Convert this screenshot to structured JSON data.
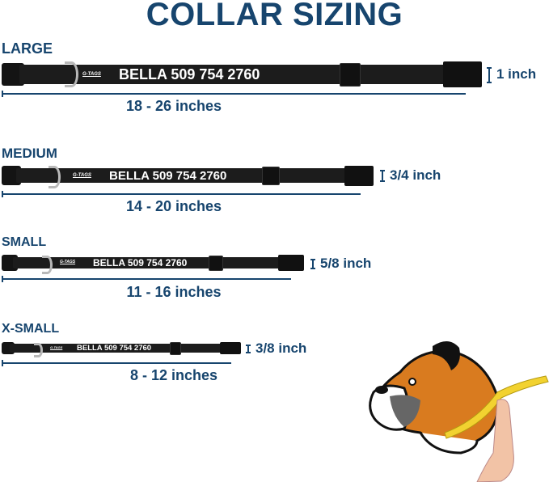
{
  "title": "COLLAR SIZING",
  "brand_logo": "G-TAGS",
  "sizes": [
    {
      "name": "LARGE",
      "collar_text": "BELLA 509 754 2760",
      "length": "18 - 26 inches",
      "width": "1 inch"
    },
    {
      "name": "MEDIUM",
      "collar_text": "BELLA 509 754 2760",
      "length": "14 - 20 inches",
      "width": "3/4 inch"
    },
    {
      "name": "SMALL",
      "collar_text": "BELLA 509 754 2760",
      "length": "11 - 16 inches",
      "width": "5/8 inch"
    },
    {
      "name": "X-SMALL",
      "collar_text": "BELLA 509 754 2760",
      "length": "8 - 12 inches",
      "width": "3/8 inch"
    }
  ],
  "colors": {
    "text": "#17456e",
    "collar": "#1c1c1c",
    "dog_fur": "#d97b1f",
    "tape": "#f2d230"
  }
}
